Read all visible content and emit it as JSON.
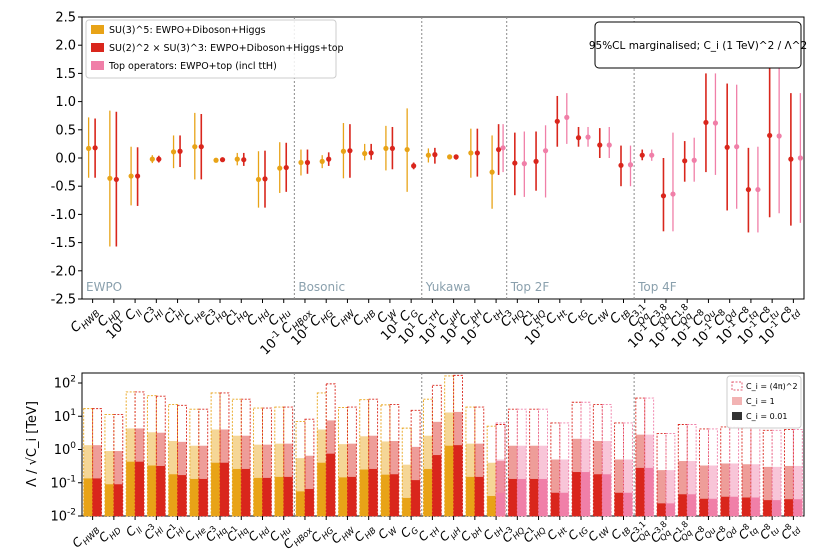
{
  "chart_data": [
    {
      "type": "errorbar",
      "title": "",
      "annotation": "95%CL marginalised; C_i (1 TeV)^2 / Λ^2",
      "ylim": [
        -2.5,
        2.5
      ],
      "yticks": [
        "2.5",
        "2.0",
        "1.5",
        "1.0",
        "0.5",
        "0.0",
        "-0.5",
        "-1.0",
        "-1.5",
        "-2.0",
        "-2.5"
      ],
      "legend": [
        {
          "label": "SU(3)^5: EWPO+Diboson+Higgs",
          "color": "#e8a317"
        },
        {
          "label": "SU(2)^2 × SU(3)^3: EWPO+Diboson+Higgs+top",
          "color": "#d9261c"
        },
        {
          "label": "Top operators: EWPO+top (incl ttH)",
          "color": "#f07fa8"
        }
      ],
      "sections": [
        "EWPO",
        "Bosonic",
        "Yukawa",
        "Top 2F",
        "Top 4F"
      ],
      "categories": [
        {
          "name": "C_HWB",
          "prefix": "",
          "sec": 0
        },
        {
          "name": "C_HD",
          "prefix": "",
          "sec": 0
        },
        {
          "name": "C_ll",
          "prefix": "10^1",
          "sec": 0
        },
        {
          "name": "C_Hl^(3)",
          "prefix": "",
          "sec": 0
        },
        {
          "name": "C_Hl^(1)",
          "prefix": "",
          "sec": 0
        },
        {
          "name": "C_He",
          "prefix": "",
          "sec": 0
        },
        {
          "name": "C_Hq^(3)",
          "prefix": "",
          "sec": 0
        },
        {
          "name": "C_Hq^(1)",
          "prefix": "",
          "sec": 0
        },
        {
          "name": "C_Hd",
          "prefix": "",
          "sec": 0
        },
        {
          "name": "C_Hu",
          "prefix": "",
          "sec": 0
        },
        {
          "name": "C_HBox",
          "prefix": "10^-1",
          "sec": 1
        },
        {
          "name": "C_HG",
          "prefix": "10^1",
          "sec": 1
        },
        {
          "name": "C_HW",
          "prefix": "",
          "sec": 1
        },
        {
          "name": "C_HB",
          "prefix": "",
          "sec": 1
        },
        {
          "name": "C_W",
          "prefix": "",
          "sec": 1
        },
        {
          "name": "C_G",
          "prefix": "10^1",
          "sec": 1
        },
        {
          "name": "C_τH",
          "prefix": "10^1",
          "sec": 2
        },
        {
          "name": "C_μH",
          "prefix": "10^1",
          "sec": 2
        },
        {
          "name": "C_bH",
          "prefix": "10^1",
          "sec": 2
        },
        {
          "name": "C_tH",
          "prefix": "10^-1",
          "sec": 2
        },
        {
          "name": "C_HQ^(3)",
          "prefix": "",
          "sec": 3
        },
        {
          "name": "C_HQ^(1)",
          "prefix": "",
          "sec": 3
        },
        {
          "name": "C_Ht",
          "prefix": "10^-1",
          "sec": 3
        },
        {
          "name": "C_tG",
          "prefix": "",
          "sec": 3
        },
        {
          "name": "C_tW",
          "prefix": "",
          "sec": 3
        },
        {
          "name": "C_tB",
          "prefix": "",
          "sec": 3
        },
        {
          "name": "C_Qq^(3,1)",
          "prefix": "",
          "sec": 4
        },
        {
          "name": "C_Qq^(3,8)",
          "prefix": "10^-1",
          "sec": 4
        },
        {
          "name": "C_Qq^(1,8)",
          "prefix": "10^-1",
          "sec": 4
        },
        {
          "name": "C_Qu^8",
          "prefix": "10^-1",
          "sec": 4
        },
        {
          "name": "C_Qd^8",
          "prefix": "10^-1",
          "sec": 4
        },
        {
          "name": "C_tq^8",
          "prefix": "10^-1",
          "sec": 4
        },
        {
          "name": "C_tu^8",
          "prefix": "10^-1",
          "sec": 4
        },
        {
          "name": "C_td^8",
          "prefix": "10^-1",
          "sec": 4
        }
      ],
      "series": [
        {
          "name": "SU(3)^5: EWPO+Diboson+Higgs",
          "color": "#e8a317",
          "central": [
            0.17,
            -0.36,
            -0.32,
            -0.02,
            0.11,
            0.2,
            -0.04,
            -0.02,
            -0.38,
            -0.18,
            -0.08,
            -0.06,
            0.12,
            0.08,
            0.17,
            0.15,
            0.05,
            0.02,
            0.09,
            -0.25,
            null,
            null,
            null,
            null,
            null,
            null,
            null,
            null,
            null,
            null,
            null,
            null,
            null,
            null
          ],
          "lower": [
            -0.35,
            -1.57,
            -0.84,
            -0.09,
            -0.18,
            -0.38,
            -0.07,
            -0.13,
            -0.88,
            -0.62,
            -0.31,
            -0.18,
            -0.36,
            -0.04,
            -0.22,
            -0.6,
            -0.08,
            -0.02,
            -0.35,
            -0.9,
            null,
            null,
            null,
            null,
            null,
            null,
            null,
            null,
            null,
            null,
            null,
            null,
            null,
            null
          ],
          "upper": [
            0.72,
            0.84,
            0.2,
            0.05,
            0.4,
            0.8,
            0.0,
            0.09,
            0.12,
            0.28,
            0.15,
            0.05,
            0.62,
            0.25,
            0.57,
            0.88,
            0.17,
            0.05,
            0.52,
            0.4,
            null,
            null,
            null,
            null,
            null,
            null,
            null,
            null,
            null,
            null,
            null,
            null,
            null,
            null
          ]
        },
        {
          "name": "SU(2)^2 × SU(3)^3: EWPO+Diboson+Higgs+top",
          "color": "#d9261c",
          "central": [
            0.18,
            -0.38,
            -0.32,
            -0.02,
            0.12,
            0.2,
            -0.03,
            -0.03,
            -0.37,
            -0.17,
            -0.08,
            -0.02,
            0.13,
            0.09,
            0.17,
            -0.14,
            0.06,
            0.02,
            0.09,
            0.15,
            -0.09,
            -0.06,
            0.65,
            0.36,
            0.23,
            -0.13,
            0.05,
            -0.67,
            -0.05,
            0.63,
            0.19,
            -0.56,
            0.4,
            -0.02
          ],
          "lower": [
            -0.35,
            -1.57,
            -0.85,
            -0.08,
            -0.16,
            -0.38,
            -0.06,
            -0.14,
            -0.88,
            -0.6,
            -0.28,
            -0.14,
            -0.35,
            -0.03,
            -0.2,
            -0.2,
            -0.1,
            -0.03,
            -0.33,
            -0.3,
            -0.66,
            -0.58,
            0.2,
            0.2,
            0.0,
            -0.5,
            -0.04,
            -1.3,
            -0.42,
            -0.25,
            -0.93,
            -1.32,
            -1.05,
            -1.2
          ],
          "upper": [
            0.7,
            0.82,
            0.19,
            0.04,
            0.4,
            0.78,
            0.01,
            0.09,
            0.13,
            0.27,
            0.15,
            0.1,
            0.6,
            0.25,
            0.55,
            -0.08,
            0.18,
            0.05,
            0.52,
            0.6,
            0.45,
            0.47,
            1.1,
            0.55,
            0.53,
            0.22,
            0.15,
            0.0,
            0.3,
            1.5,
            1.32,
            0.18,
            1.9,
            1.15
          ]
        },
        {
          "name": "Top operators: EWPO+top (incl ttH)",
          "color": "#f07fa8",
          "central": [
            null,
            null,
            null,
            null,
            null,
            null,
            null,
            null,
            null,
            null,
            null,
            null,
            null,
            null,
            null,
            null,
            null,
            null,
            null,
            0.18,
            -0.1,
            0.13,
            0.72,
            0.37,
            0.23,
            -0.12,
            0.05,
            -0.64,
            -0.04,
            0.62,
            0.2,
            -0.56,
            0.39,
            0.0
          ],
          "lower": [
            null,
            null,
            null,
            null,
            null,
            null,
            null,
            null,
            null,
            null,
            null,
            null,
            null,
            null,
            null,
            null,
            null,
            null,
            null,
            -0.25,
            -0.69,
            -0.7,
            0.25,
            0.2,
            0.0,
            -0.5,
            -0.05,
            -1.3,
            -0.42,
            -0.3,
            -0.9,
            -1.32,
            -0.98,
            -1.15
          ],
          "upper": [
            null,
            null,
            null,
            null,
            null,
            null,
            null,
            null,
            null,
            null,
            null,
            null,
            null,
            null,
            null,
            null,
            null,
            null,
            null,
            0.6,
            0.47,
            0.58,
            1.15,
            0.55,
            0.55,
            0.22,
            0.15,
            0.45,
            0.36,
            1.5,
            1.3,
            0.2,
            1.9,
            1.15
          ]
        }
      ]
    },
    {
      "type": "bar",
      "ylabel": "Λ / √C_i [TeV]",
      "yscale": "log",
      "ylim": [
        0.01,
        200
      ],
      "yticks": [
        "10^2",
        "10^1",
        "10^0",
        "10^-1",
        "10^-2"
      ],
      "legend": [
        {
          "label": "C_i = (4π)^2",
          "style": "dashed"
        },
        {
          "label": "C_i = 1",
          "style": "light"
        },
        {
          "label": "C_i = 0.01",
          "style": "solid"
        }
      ],
      "categories": [
        "C_HWB",
        "C_HD",
        "C_ll",
        "C_Hl^(3)",
        "C_Hl^(1)",
        "C_He",
        "C_Hq^(3)",
        "C_Hq^(1)",
        "C_Hd",
        "C_Hu",
        "C_HBox",
        "C_HG",
        "C_HW",
        "C_HB",
        "C_W",
        "C_G",
        "C_τH",
        "C_μH",
        "C_bH",
        "C_tH",
        "C_HQ^(3)",
        "C_HQ^(1)",
        "C_Ht",
        "C_tG",
        "C_tW",
        "C_tB",
        "C_Qq^(3,1)",
        "C_Qq^(3,8)",
        "C_Qq^(1,8)",
        "C_Qu^8",
        "C_Qd^8",
        "C_tq^8",
        "C_tu^8",
        "C_td^8"
      ],
      "series": [
        {
          "name": "SU(3)^5: EWPO+Diboson+Higgs",
          "color": "#e8a317",
          "values": [
            1.35,
            0.9,
            4.3,
            3.3,
            1.8,
            1.3,
            4.0,
            2.6,
            1.4,
            1.5,
            0.55,
            4.0,
            1.45,
            2.5,
            1.75,
            0.35,
            2.6,
            13.0,
            1.5,
            0.4,
            null,
            null,
            null,
            null,
            null,
            null,
            null,
            null,
            null,
            null,
            null,
            null,
            null,
            null
          ]
        },
        {
          "name": "SU(2)^2 × SU(3)^3: EWPO+Diboson+Higgs+top",
          "color": "#d9261c",
          "values": [
            1.35,
            0.9,
            4.3,
            3.2,
            1.7,
            1.3,
            4.0,
            2.6,
            1.4,
            1.5,
            0.65,
            7.5,
            1.5,
            2.6,
            1.8,
            1.2,
            6.8,
            13.5,
            1.5,
            0.45,
            1.3,
            1.3,
            0.5,
            2.1,
            1.8,
            0.5,
            2.8,
            0.24,
            0.45,
            0.33,
            0.38,
            0.36,
            0.3,
            0.32
          ]
        },
        {
          "name": "Top operators: EWPO+top (incl ttH)",
          "color": "#f07fa8",
          "values": [
            null,
            null,
            null,
            null,
            null,
            null,
            null,
            null,
            null,
            null,
            null,
            null,
            null,
            null,
            null,
            null,
            null,
            null,
            null,
            0.5,
            1.3,
            1.3,
            0.5,
            2.1,
            1.8,
            0.5,
            2.8,
            0.24,
            0.45,
            0.33,
            0.38,
            0.36,
            0.3,
            0.32
          ]
        }
      ]
    }
  ]
}
